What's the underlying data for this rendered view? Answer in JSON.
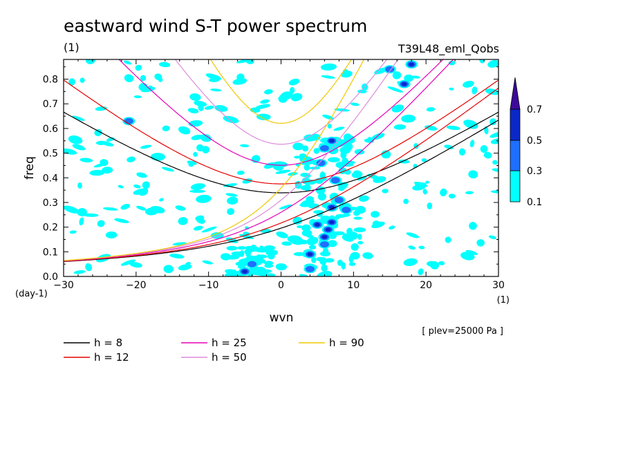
{
  "chart_data": {
    "type": "contour",
    "title": "eastward wind S-T power spectrum",
    "subtitle": "(1)",
    "run_name": "T39L48_eml_Qobs",
    "xlabel": "wvn",
    "xunit": "(1)",
    "ylabel": "freq",
    "yunit": "(day-1)",
    "xlim": [
      -30,
      30
    ],
    "ylim": [
      0,
      0.88
    ],
    "xticks": [
      -30,
      -20,
      -10,
      0,
      10,
      20,
      30
    ],
    "yticks": [
      0.0,
      0.1,
      0.2,
      0.3,
      0.4,
      0.5,
      0.6,
      0.7,
      0.8
    ],
    "ytick_labels": [
      "0.0",
      "0.1",
      "0.2",
      "0.3",
      "0.4",
      "0.5",
      "0.6",
      "0.7",
      "0.8"
    ],
    "plev_note": "[ plev=25000 Pa ]",
    "colorbar": {
      "levels": [
        "0.1",
        "0.3",
        "0.5",
        "0.7"
      ],
      "colors": [
        "#00ffff",
        "#1e6fff",
        "#0a28c8",
        "#3c0a9a"
      ]
    },
    "dispersion_curves": [
      {
        "name": "h =  8",
        "h": 8,
        "color": "#000000"
      },
      {
        "name": "h = 12",
        "h": 12,
        "color": "#e60000"
      },
      {
        "name": "h = 25",
        "h": 25,
        "color": "#e600b4"
      },
      {
        "name": "h = 50",
        "h": 50,
        "color": "#dc8cdc"
      },
      {
        "name": "h = 90",
        "h": 90,
        "color": "#f0c800"
      }
    ],
    "high_power_regions": [
      {
        "wvn": 6.5,
        "freq": 0.19,
        "level": "0.5"
      },
      {
        "wvn": 6.0,
        "freq": 0.16,
        "level": "0.5"
      },
      {
        "wvn": 7.0,
        "freq": 0.22,
        "level": "0.5"
      },
      {
        "wvn": 7.0,
        "freq": 0.28,
        "level": "0.5"
      },
      {
        "wvn": 8.0,
        "freq": 0.31,
        "level": "0.3"
      },
      {
        "wvn": 5.0,
        "freq": 0.21,
        "level": "0.5"
      },
      {
        "wvn": 4.0,
        "freq": 0.09,
        "level": "0.5"
      },
      {
        "wvn": 4.0,
        "freq": 0.03,
        "level": "0.3"
      },
      {
        "wvn": -5.0,
        "freq": 0.02,
        "level": "0.5"
      },
      {
        "wvn": -4.0,
        "freq": 0.05,
        "level": "0.3"
      },
      {
        "wvn": 7.5,
        "freq": 0.39,
        "level": "0.3"
      },
      {
        "wvn": 7.0,
        "freq": 0.55,
        "level": "0.5"
      },
      {
        "wvn": 6.0,
        "freq": 0.52,
        "level": "0.3"
      },
      {
        "wvn": 17.0,
        "freq": 0.78,
        "level": "0.5"
      },
      {
        "wvn": 18.0,
        "freq": 0.86,
        "level": "0.5"
      },
      {
        "wvn": 15.0,
        "freq": 0.84,
        "level": "0.3"
      },
      {
        "wvn": -21.0,
        "freq": 0.63,
        "level": "0.3"
      },
      {
        "wvn": 6.0,
        "freq": 0.13,
        "level": "0.3"
      },
      {
        "wvn": 5.5,
        "freq": 0.46,
        "level": "0.3"
      },
      {
        "wvn": 9.0,
        "freq": 0.27,
        "level": "0.3"
      }
    ]
  }
}
